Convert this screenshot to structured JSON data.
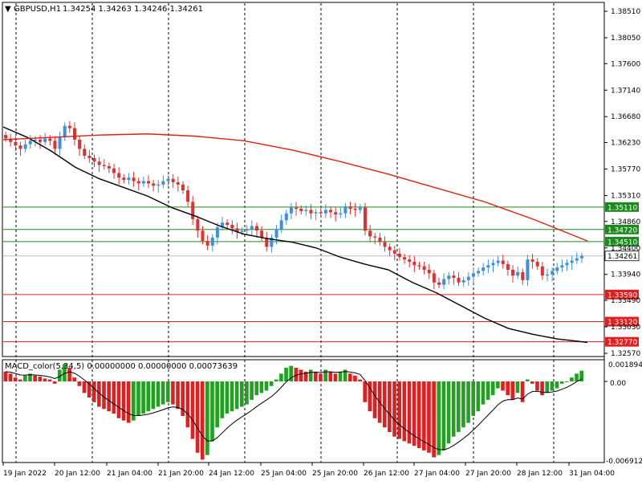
{
  "header": {
    "symbol_label": "GBPUSD,H1",
    "ohlc_text": "1.34254 1.34263 1.34246 1.34261",
    "arrow": "▼"
  },
  "macd": {
    "label": "MACD_color(5,34,5) 0.00000000 0.00000000 0.00073639",
    "top_value": "0.0018942",
    "zero_value": "0.00",
    "bottom_value": "-0.006912"
  },
  "price_axis": {
    "labels": [
      "1.38510",
      "1.38050",
      "1.37600",
      "1.37140",
      "1.36680",
      "1.36230",
      "1.35770",
      "1.35310",
      "1.34860",
      "1.34400",
      "1.33940",
      "1.33490",
      "1.33030",
      "1.32570"
    ]
  },
  "levels": [
    {
      "price": "1.35110",
      "kind": "resistance",
      "color": "#1e8a1e"
    },
    {
      "price": "1.34720",
      "kind": "resistance",
      "color": "#1e8a1e"
    },
    {
      "price": "1.34510",
      "kind": "resistance",
      "color": "#1e8a1e"
    },
    {
      "price": "1.33590",
      "kind": "support",
      "color": "#e02020"
    },
    {
      "price": "1.33120",
      "kind": "support",
      "color": "#e02020"
    },
    {
      "price": "1.32770",
      "kind": "support",
      "color": "#e02020"
    }
  ],
  "current_price": "1.34261",
  "time_axis": {
    "labels": [
      "19 Jan 2022",
      "20 Jan 12:00",
      "21 Jan 04:00",
      "21 Jan 20:00",
      "24 Jan 12:00",
      "25 Jan 04:00",
      "25 Jan 20:00",
      "26 Jan 12:00",
      "27 Jan 04:00",
      "27 Jan 20:00",
      "28 Jan 12:00",
      "31 Jan 04:00"
    ]
  },
  "colors": {
    "bull": "#3d8fe0",
    "bear": "#e03030",
    "ma_fast": "#000000",
    "ma_slow": "#e02010",
    "macd_pos": "#22a022",
    "macd_neg": "#e02020",
    "grid": "#000000"
  },
  "chart_data": {
    "type": "candlestick",
    "symbol": "GBPUSD",
    "timeframe": "H1",
    "last_ohlc": {
      "open": 1.34254,
      "high": 1.34263,
      "low": 1.34246,
      "close": 1.34261
    },
    "y_range": [
      1.3257,
      1.3851
    ],
    "close_series": [
      1.363,
      1.3624,
      1.3618,
      1.3612,
      1.362,
      1.3626,
      1.3628,
      1.3624,
      1.363,
      1.3626,
      1.3612,
      1.3632,
      1.3652,
      1.3648,
      1.3628,
      1.3612,
      1.36,
      1.3596,
      1.359,
      1.3584,
      1.3582,
      1.3578,
      1.357,
      1.3562,
      1.3558,
      1.3562,
      1.3556,
      1.3552,
      1.3556,
      1.3552,
      1.3548,
      1.355,
      1.3556,
      1.356,
      1.3554,
      1.355,
      1.354,
      1.352,
      1.349,
      1.347,
      1.3452,
      1.3444,
      1.3458,
      1.3476,
      1.3484,
      1.348,
      1.3474,
      1.3468,
      1.347,
      1.3472,
      1.3478,
      1.347,
      1.3458,
      1.3442,
      1.3458,
      1.3472,
      1.3488,
      1.35,
      1.351,
      1.3508,
      1.3504,
      1.3506,
      1.35,
      1.3502,
      1.35,
      1.3506,
      1.3502,
      1.3498,
      1.35,
      1.3512,
      1.3508,
      1.3506,
      1.351,
      1.347,
      1.346,
      1.3458,
      1.345,
      1.3442,
      1.3436,
      1.343,
      1.3424,
      1.342,
      1.3416,
      1.341,
      1.3408,
      1.3402,
      1.3396,
      1.338,
      1.3376,
      1.3386,
      1.3392,
      1.3388,
      1.338,
      1.3384,
      1.339,
      1.3396,
      1.34,
      1.3406,
      1.341,
      1.3414,
      1.3418,
      1.3412,
      1.3402,
      1.3392,
      1.3398,
      1.3384,
      1.342,
      1.3416,
      1.3408,
      1.3392,
      1.3394,
      1.34,
      1.3406,
      1.341,
      1.3414,
      1.3418,
      1.3422,
      1.3426
    ],
    "ma_fast": [
      [
        0,
        1.365
      ],
      [
        30,
        1.3632
      ],
      [
        60,
        1.3608
      ],
      [
        90,
        1.358
      ],
      [
        120,
        1.356
      ],
      [
        150,
        1.3545
      ],
      [
        180,
        1.353
      ],
      [
        210,
        1.351
      ],
      [
        240,
        1.3495
      ],
      [
        270,
        1.3478
      ],
      [
        300,
        1.3464
      ],
      [
        330,
        1.3456
      ],
      [
        360,
        1.345
      ],
      [
        390,
        1.344
      ],
      [
        420,
        1.3424
      ],
      [
        450,
        1.3412
      ],
      [
        480,
        1.3402
      ],
      [
        510,
        1.338
      ],
      [
        540,
        1.3362
      ],
      [
        570,
        1.334
      ],
      [
        600,
        1.3318
      ],
      [
        630,
        1.33
      ],
      [
        660,
        1.329
      ],
      [
        690,
        1.3282
      ],
      [
        728,
        1.3276
      ]
    ],
    "ma_slow": [
      [
        0,
        1.3628
      ],
      [
        60,
        1.3632
      ],
      [
        120,
        1.3636
      ],
      [
        180,
        1.3638
      ],
      [
        240,
        1.3634
      ],
      [
        300,
        1.3626
      ],
      [
        360,
        1.361
      ],
      [
        420,
        1.359
      ],
      [
        480,
        1.3568
      ],
      [
        540,
        1.3544
      ],
      [
        600,
        1.352
      ],
      [
        660,
        1.349
      ],
      [
        728,
        1.3452
      ]
    ],
    "macd_histogram": [
      0.001,
      0.0008,
      0.0004,
      0.0002,
      0.0006,
      0.0008,
      0.0006,
      0.0005,
      0.0003,
      0.0002,
      -0.0002,
      0.0012,
      0.0018,
      0.0014,
      0.0004,
      -0.0004,
      -0.001,
      -0.0014,
      -0.0018,
      -0.0022,
      -0.0024,
      -0.0026,
      -0.0028,
      -0.0032,
      -0.0034,
      -0.0036,
      -0.0034,
      -0.003,
      -0.0028,
      -0.0026,
      -0.0024,
      -0.0022,
      -0.002,
      -0.0018,
      -0.002,
      -0.0024,
      -0.003,
      -0.004,
      -0.005,
      -0.0062,
      -0.0068,
      -0.0064,
      -0.0052,
      -0.004,
      -0.0032,
      -0.0028,
      -0.0026,
      -0.0024,
      -0.0022,
      -0.002,
      -0.0016,
      -0.0012,
      -0.001,
      -0.0008,
      -0.0004,
      0.0002,
      0.0008,
      0.0014,
      0.0016,
      0.0014,
      0.0012,
      0.001,
      0.0012,
      0.001,
      0.0008,
      0.0012,
      0.001,
      0.0008,
      0.001,
      0.0012,
      0.0008,
      0.0006,
      0.0002,
      -0.0018,
      -0.0026,
      -0.0032,
      -0.0036,
      -0.004,
      -0.0044,
      -0.0048,
      -0.005,
      -0.0052,
      -0.0054,
      -0.0056,
      -0.0058,
      -0.006,
      -0.0062,
      -0.0066,
      -0.0064,
      -0.006,
      -0.0054,
      -0.0048,
      -0.0044,
      -0.004,
      -0.0036,
      -0.003,
      -0.0026,
      -0.002,
      -0.0016,
      -0.0012,
      -0.0006,
      -0.0008,
      -0.0012,
      -0.0016,
      -0.001,
      -0.0018,
      0.0002,
      -0.0002,
      -0.0008,
      -0.0012,
      -0.001,
      -0.0008,
      -0.0006,
      -0.0002,
      0.0,
      0.0004,
      0.0008,
      0.0011
    ]
  }
}
